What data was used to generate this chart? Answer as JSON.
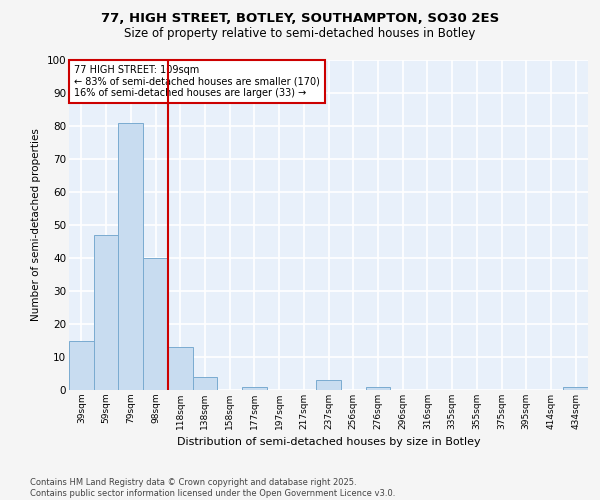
{
  "title_line1": "77, HIGH STREET, BOTLEY, SOUTHAMPTON, SO30 2ES",
  "title_line2": "Size of property relative to semi-detached houses in Botley",
  "xlabel": "Distribution of semi-detached houses by size in Botley",
  "ylabel": "Number of semi-detached properties",
  "footer_line1": "Contains HM Land Registry data © Crown copyright and database right 2025.",
  "footer_line2": "Contains public sector information licensed under the Open Government Licence v3.0.",
  "bin_labels": [
    "39sqm",
    "59sqm",
    "79sqm",
    "98sqm",
    "118sqm",
    "138sqm",
    "158sqm",
    "177sqm",
    "197sqm",
    "217sqm",
    "237sqm",
    "256sqm",
    "276sqm",
    "296sqm",
    "316sqm",
    "335sqm",
    "355sqm",
    "375sqm",
    "395sqm",
    "414sqm",
    "434sqm"
  ],
  "bar_values": [
    15,
    47,
    81,
    40,
    13,
    4,
    0,
    1,
    0,
    0,
    3,
    0,
    1,
    0,
    0,
    0,
    0,
    0,
    0,
    0,
    1
  ],
  "bar_color": "#c8dcf0",
  "bar_edge_color": "#7aabd0",
  "background_color": "#e8f0fa",
  "grid_color": "#ffffff",
  "vline_color": "#cc0000",
  "vline_x": 3.5,
  "annotation_title": "77 HIGH STREET: 109sqm",
  "annotation_line2": "← 83% of semi-detached houses are smaller (170)",
  "annotation_line3": "16% of semi-detached houses are larger (33) →",
  "annotation_box_color": "#cc0000",
  "fig_bg_color": "#f5f5f5",
  "ylim": [
    0,
    100
  ],
  "yticks": [
    0,
    10,
    20,
    30,
    40,
    50,
    60,
    70,
    80,
    90,
    100
  ]
}
